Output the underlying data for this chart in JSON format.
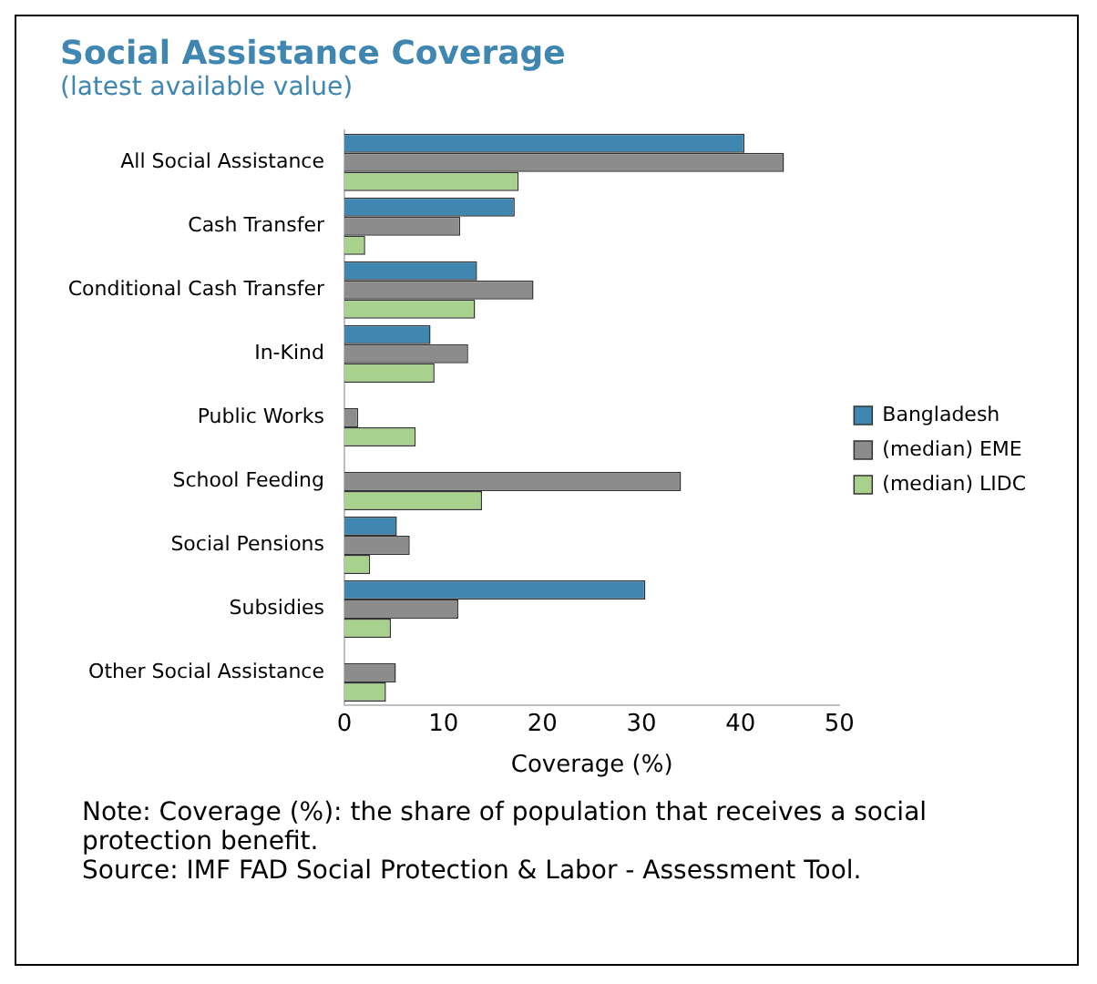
{
  "chart_data": {
    "type": "bar",
    "orientation": "horizontal",
    "title": "Social Assistance Coverage",
    "subtitle": "(latest available value)",
    "xlabel": "Coverage (%)",
    "categories": [
      "All Social Assistance",
      "Cash Transfer",
      "Conditional Cash Transfer",
      "In-Kind",
      "Public Works",
      "School Feeding",
      "Social Pensions",
      "Subsidies",
      "Other Social Assistance"
    ],
    "series": [
      {
        "name": "Bangladesh",
        "color": "#3f86b0",
        "values": [
          40.4,
          17.2,
          13.4,
          8.7,
          null,
          null,
          5.3,
          30.4,
          null
        ]
      },
      {
        "name": "(median) EME",
        "color": "#8c8c8c",
        "values": [
          44.4,
          11.7,
          19.1,
          12.5,
          1.4,
          34.0,
          6.6,
          11.5,
          5.2
        ]
      },
      {
        "name": "(median) LIDC",
        "color": "#a9d18e",
        "values": [
          17.6,
          2.1,
          13.2,
          9.1,
          7.2,
          13.9,
          2.6,
          4.7,
          4.2
        ]
      }
    ],
    "xlim": [
      0,
      50
    ],
    "xticks": [
      0,
      10,
      20,
      30,
      40,
      50
    ],
    "grid": false,
    "legend": "right",
    "annotations": [
      "Note: Coverage (%): the share of population that receives a social protection benefit.",
      "Source: IMF FAD Social Protection & Labor - Assessment Tool."
    ]
  }
}
